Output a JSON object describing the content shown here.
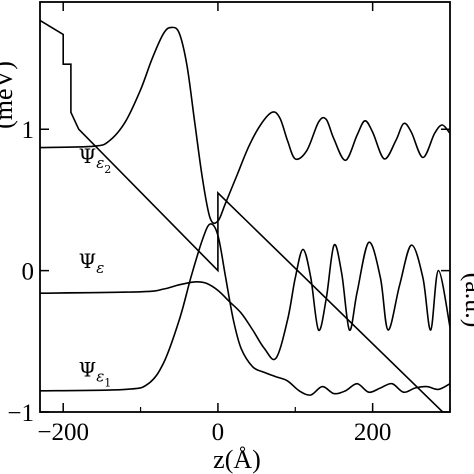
{
  "chart_data": {
    "type": "line",
    "title": "",
    "xlabel": "z(Å)",
    "ylabel_left": "(meV)",
    "ylabel_right": "(a.u.)",
    "xlim": [
      -230,
      300
    ],
    "ylim": [
      -1,
      1.9
    ],
    "xticks": [
      {
        "value": -200,
        "label": "−200"
      },
      {
        "value": 0,
        "label": "0"
      },
      {
        "value": 200,
        "label": "200"
      }
    ],
    "yticks": [
      {
        "value": -1,
        "label": "−1"
      },
      {
        "value": 0,
        "label": "0"
      },
      {
        "value": 1,
        "label": "1"
      }
    ],
    "annotations": [
      {
        "text": "Ψ",
        "sub": "ε2",
        "z": -180,
        "y": 0.76
      },
      {
        "text": "Ψ",
        "sub": "ε",
        "z": -180,
        "y": 0.02
      },
      {
        "text": "Ψ",
        "sub": "ε1",
        "z": -180,
        "y": -0.75
      }
    ],
    "series": [
      {
        "name": "",
        "role": "potential",
        "x": [
          -230,
          -200,
          -200,
          -190,
          -190,
          -180,
          0,
          0,
          0,
          300
        ],
        "y": [
          1.77,
          1.67,
          1.46,
          1.46,
          1.12,
          1.0,
          0.0,
          0.0,
          0.55,
          -1.05
        ]
      },
      {
        "name": "Ψε2",
        "role": "wavefunction",
        "baseline": 0.87,
        "x": [
          -230,
          -160,
          -140,
          -120,
          -100,
          -85,
          -70,
          -60,
          -50,
          -40,
          -30,
          -20,
          -10,
          0,
          10,
          25,
          40,
          55,
          70,
          80,
          90,
          100,
          115,
          130,
          140,
          150,
          165,
          180,
          190,
          200,
          215,
          230,
          240,
          250,
          265,
          280,
          290,
          300
        ],
        "y": [
          0.87,
          0.88,
          0.92,
          1.05,
          1.28,
          1.5,
          1.68,
          1.72,
          1.68,
          1.45,
          1.05,
          0.65,
          0.37,
          0.35,
          0.48,
          0.68,
          0.88,
          1.03,
          1.12,
          1.08,
          0.92,
          0.79,
          0.85,
          1.05,
          1.07,
          0.93,
          0.78,
          0.96,
          1.06,
          0.98,
          0.79,
          0.92,
          1.04,
          0.98,
          0.8,
          0.97,
          1.03,
          0.97
        ]
      },
      {
        "name": "Ψε",
        "role": "wavefunction",
        "baseline": -0.16,
        "x": [
          -230,
          -100,
          -70,
          -50,
          -30,
          -15,
          0,
          15,
          30,
          45,
          60,
          75,
          90,
          100,
          110,
          120,
          130,
          140,
          150,
          160,
          170,
          180,
          195,
          210,
          220,
          235,
          250,
          265,
          275,
          285,
          300
        ],
        "y": [
          -0.16,
          -0.15,
          -0.13,
          -0.1,
          -0.08,
          -0.09,
          -0.14,
          -0.22,
          -0.3,
          -0.42,
          -0.55,
          -0.62,
          -0.35,
          -0.05,
          0.15,
          -0.05,
          -0.42,
          -0.2,
          0.18,
          -0.02,
          -0.42,
          -0.15,
          0.2,
          -0.05,
          -0.42,
          -0.1,
          0.18,
          -0.05,
          -0.42,
          0.0,
          -0.4
        ]
      },
      {
        "name": "Ψε1",
        "role": "wavefunction",
        "baseline": -0.85,
        "x": [
          -230,
          -120,
          -90,
          -70,
          -50,
          -35,
          -20,
          -10,
          0,
          10,
          20,
          30,
          45,
          60,
          75,
          90,
          105,
          120,
          135,
          150,
          165,
          180,
          195,
          210,
          225,
          240,
          255,
          270,
          285,
          300
        ],
        "y": [
          -0.85,
          -0.84,
          -0.8,
          -0.65,
          -0.35,
          -0.05,
          0.22,
          0.33,
          0.25,
          -0.05,
          -0.35,
          -0.55,
          -0.68,
          -0.72,
          -0.75,
          -0.78,
          -0.85,
          -0.88,
          -0.82,
          -0.87,
          -0.85,
          -0.8,
          -0.86,
          -0.83,
          -0.8,
          -0.86,
          -0.83,
          -0.82,
          -0.84,
          -0.8
        ]
      }
    ],
    "grid": false,
    "legend": "none"
  }
}
